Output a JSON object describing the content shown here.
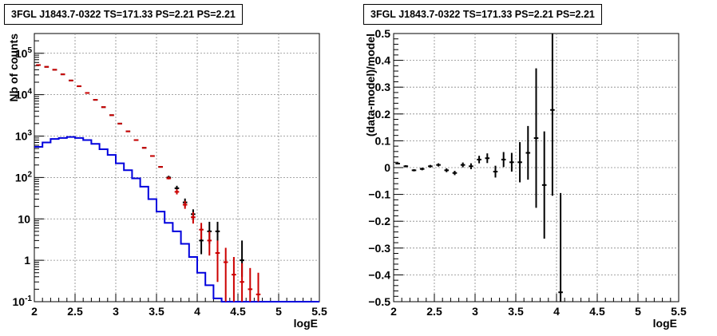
{
  "panels": [
    {
      "title": "3FGL J1843.7-0322 TS=171.33 PS=2.21 PS=2.21"
    },
    {
      "title": "3FGL J1843.7-0322 TS=171.33 PS=2.21 PS=2.21"
    }
  ],
  "colors": {
    "data": "#000000",
    "model_total": "#cc0000",
    "source_model": "#0000dd",
    "grid": "#888888"
  },
  "chart_data": [
    {
      "type": "line",
      "title": "3FGL J1843.7-0322 TS=171.33 PS=2.21 PS=2.21",
      "xlabel": "logE",
      "ylabel": "Nb of counts",
      "xlim": [
        2,
        5.5
      ],
      "ylim": [
        0.1,
        300000
      ],
      "yscale": "log",
      "grid": true,
      "x_ticks": [
        "2",
        "2.5",
        "3",
        "3.5",
        "4",
        "4.5",
        "5",
        "5.5"
      ],
      "y_ticks": [
        "10^-1",
        "1",
        "10",
        "10^2",
        "10^3",
        "10^4",
        "10^5"
      ],
      "bin_width": 0.1,
      "series": [
        {
          "kind": "data_points",
          "x": [
            2.05,
            2.15,
            2.25,
            2.35,
            2.45,
            2.55,
            2.65,
            2.75,
            2.85,
            2.95,
            3.05,
            3.15,
            3.25,
            3.35,
            3.45,
            3.55,
            3.65,
            3.75,
            3.85,
            3.95,
            4.05,
            4.15,
            4.25,
            4.55
          ],
          "y": [
            52000,
            47000,
            40000,
            31000,
            22000,
            16000,
            11000,
            7500,
            5000,
            3200,
            2000,
            1300,
            800,
            520,
            330,
            180,
            100,
            55,
            25,
            13,
            3,
            5,
            5,
            1
          ],
          "yerr_low": [
            0,
            0,
            0,
            0,
            0,
            0,
            0,
            0,
            0,
            0,
            0,
            0,
            0,
            0,
            0,
            0,
            8,
            7,
            5,
            3.5,
            1.6,
            2.5,
            2.5,
            0.6
          ],
          "yerr_high": [
            0,
            0,
            0,
            0,
            0,
            0,
            0,
            0,
            0,
            0,
            0,
            0,
            0,
            0,
            0,
            0,
            10,
            8,
            6,
            4,
            3,
            3.5,
            3.5,
            2
          ]
        },
        {
          "kind": "model_total_points",
          "x": [
            2.05,
            2.15,
            2.25,
            2.35,
            2.45,
            2.55,
            2.65,
            2.75,
            2.85,
            2.95,
            3.05,
            3.15,
            3.25,
            3.35,
            3.45,
            3.55,
            3.65,
            3.75,
            3.85,
            3.95,
            4.05,
            4.15,
            4.25,
            4.35,
            4.45,
            4.55,
            4.65,
            4.75
          ],
          "y": [
            52000,
            47000,
            40000,
            31000,
            22000,
            16000,
            11000,
            7500,
            5000,
            3200,
            2000,
            1300,
            800,
            520,
            330,
            180,
            95,
            45,
            22,
            11,
            5.5,
            3,
            1.5,
            0.9,
            0.45,
            0.3,
            0.2,
            0.15
          ],
          "yerr_low": [
            0,
            0,
            0,
            0,
            0,
            0,
            0,
            0,
            0,
            0,
            0,
            0,
            0,
            0,
            0,
            0,
            5,
            6,
            4.5,
            3.3,
            2.3,
            1.7,
            1.2,
            0.9,
            0.45,
            0.3,
            0.2,
            0.15
          ],
          "yerr_high": [
            0,
            0,
            0,
            0,
            0,
            0,
            0,
            0,
            0,
            0,
            0,
            0,
            0,
            0,
            0,
            0,
            10,
            7,
            5,
            3.5,
            2.5,
            2,
            1.5,
            1.1,
            0.75,
            0.55,
            0.45,
            0.35
          ]
        },
        {
          "kind": "source_model_histogram",
          "x": [
            2.05,
            2.15,
            2.25,
            2.35,
            2.45,
            2.55,
            2.65,
            2.75,
            2.85,
            2.95,
            3.05,
            3.15,
            3.25,
            3.35,
            3.45,
            3.55,
            3.65,
            3.75,
            3.85,
            3.95,
            4.05,
            4.15,
            4.25
          ],
          "y": [
            550,
            700,
            850,
            900,
            950,
            900,
            800,
            650,
            480,
            350,
            220,
            150,
            95,
            60,
            30,
            15,
            8,
            5,
            2.5,
            1.2,
            0.5,
            0.25,
            0.12
          ]
        }
      ]
    },
    {
      "type": "scatter",
      "title": "3FGL J1843.7-0322 TS=171.33 PS=2.21 PS=2.21",
      "xlabel": "logE",
      "ylabel": "(data-model)/model",
      "xlim": [
        2,
        5.5
      ],
      "ylim": [
        -0.5,
        0.5
      ],
      "grid": true,
      "x_ticks": [
        "2",
        "2.5",
        "3",
        "3.5",
        "4",
        "4.5",
        "5",
        "5.5"
      ],
      "y_ticks": [
        "−0.5",
        "−0.4",
        "−0.3",
        "−0.2",
        "−0.1",
        "0",
        "0.1",
        "0.2",
        "0.3",
        "0.4",
        "0.5"
      ],
      "bin_width": 0.1,
      "series": [
        {
          "kind": "residuals",
          "x": [
            2.05,
            2.15,
            2.25,
            2.35,
            2.45,
            2.55,
            2.65,
            2.75,
            2.85,
            2.95,
            3.05,
            3.15,
            3.25,
            3.35,
            3.45,
            3.55,
            3.65,
            3.75,
            3.85,
            3.95,
            4.05
          ],
          "y": [
            0.015,
            0.005,
            -0.01,
            -0.005,
            0.005,
            0.01,
            -0.01,
            -0.02,
            0.01,
            0.005,
            0.03,
            0.035,
            -0.015,
            0.03,
            0.02,
            0.02,
            0.055,
            0.11,
            -0.065,
            0.215,
            -0.465
          ],
          "yerr": [
            0.003,
            0.004,
            0.004,
            0.005,
            0.005,
            0.006,
            0.007,
            0.008,
            0.009,
            0.011,
            0.014,
            0.018,
            0.022,
            0.028,
            0.035,
            0.075,
            0.1,
            0.26,
            0.2,
            0.32,
            0.37
          ]
        }
      ]
    }
  ]
}
